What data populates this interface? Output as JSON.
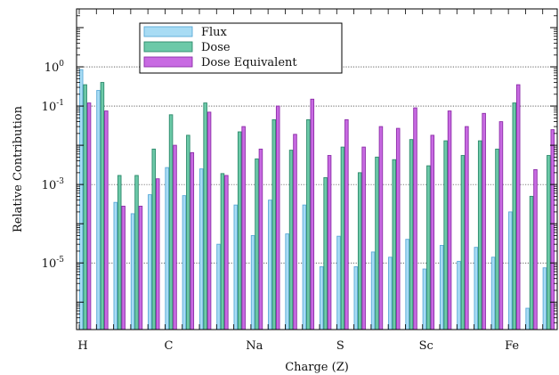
{
  "chart_data": {
    "type": "bar",
    "scale_y": "log",
    "ylim": [
      2e-07,
      30
    ],
    "xlabel": "Charge (Z)",
    "ylabel": "Relative Contribution",
    "y_ticks": [
      {
        "value": 1,
        "label": "10",
        "exp": "0"
      },
      {
        "value": 0.1,
        "label": "10",
        "exp": "-1"
      },
      {
        "value": 0.001,
        "label": "10",
        "exp": "-3"
      },
      {
        "value": 1e-05,
        "label": "10",
        "exp": "-5"
      }
    ],
    "grid_y": [
      1,
      0.1,
      0.001,
      1e-05
    ],
    "legend_position": "top-left",
    "x_tick_labels": [
      {
        "z": 1,
        "label": "H"
      },
      {
        "z": 6,
        "label": "C"
      },
      {
        "z": 11,
        "label": "Na"
      },
      {
        "z": 16,
        "label": "S"
      },
      {
        "z": 21,
        "label": "Sc"
      },
      {
        "z": 26,
        "label": "Fe"
      }
    ],
    "categories": [
      1,
      2,
      3,
      4,
      5,
      6,
      7,
      8,
      9,
      10,
      11,
      12,
      13,
      14,
      15,
      16,
      17,
      18,
      19,
      20,
      21,
      22,
      23,
      24,
      25,
      26,
      27,
      28
    ],
    "series": [
      {
        "name": "Flux",
        "color": "#a8dcf4",
        "stroke": "#5aaad8",
        "values": [
          0.85,
          0.25,
          0.00035,
          0.00018,
          0.00055,
          0.0027,
          0.00052,
          0.0025,
          3e-05,
          0.0003,
          5e-05,
          0.0004,
          5.5e-05,
          0.0003,
          8e-06,
          4.8e-05,
          8e-06,
          1.9e-05,
          1.4e-05,
          4e-05,
          7e-06,
          2.8e-05,
          1.1e-05,
          2.5e-05,
          1.4e-05,
          0.0002,
          7e-07,
          7.5e-06
        ]
      },
      {
        "name": "Dose",
        "color": "#6cc9a8",
        "stroke": "#2d8a6c",
        "values": [
          0.35,
          0.4,
          0.0017,
          0.0017,
          0.008,
          0.06,
          0.018,
          0.12,
          0.0019,
          0.022,
          0.0045,
          0.045,
          0.0075,
          0.045,
          0.0015,
          0.009,
          0.002,
          0.005,
          0.0043,
          0.014,
          0.003,
          0.013,
          0.0055,
          0.013,
          0.008,
          0.12,
          0.0005,
          0.0055
        ]
      },
      {
        "name": "Dose Equivalent",
        "color": "#c86ae2",
        "stroke": "#8c2ea8",
        "values": [
          0.12,
          0.075,
          0.00028,
          0.00028,
          0.0014,
          0.01,
          0.0065,
          0.07,
          0.0017,
          0.03,
          0.008,
          0.1,
          0.019,
          0.15,
          0.0055,
          0.045,
          0.009,
          0.03,
          0.027,
          0.09,
          0.018,
          0.075,
          0.03,
          0.065,
          0.04,
          0.35,
          0.0024,
          0.025
        ]
      }
    ]
  }
}
